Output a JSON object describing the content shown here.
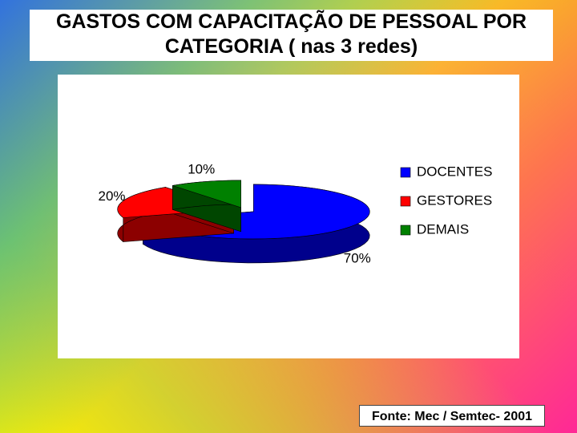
{
  "chart_data": {
    "type": "pie",
    "title": "GASTOS  COM CAPACITAÇÃO DE PESSOAL POR CATEGORIA ( nas 3 redes)",
    "categories": [
      "DOCENTES",
      "GESTORES",
      "DEMAIS"
    ],
    "values": [
      70,
      20,
      10
    ],
    "value_labels": [
      "70%",
      "20%",
      "10%"
    ],
    "colors": [
      "#0000ff",
      "#ff0000",
      "#008000"
    ],
    "legend": "right",
    "source": "Fonte: Mec / Semtec- 2001"
  }
}
